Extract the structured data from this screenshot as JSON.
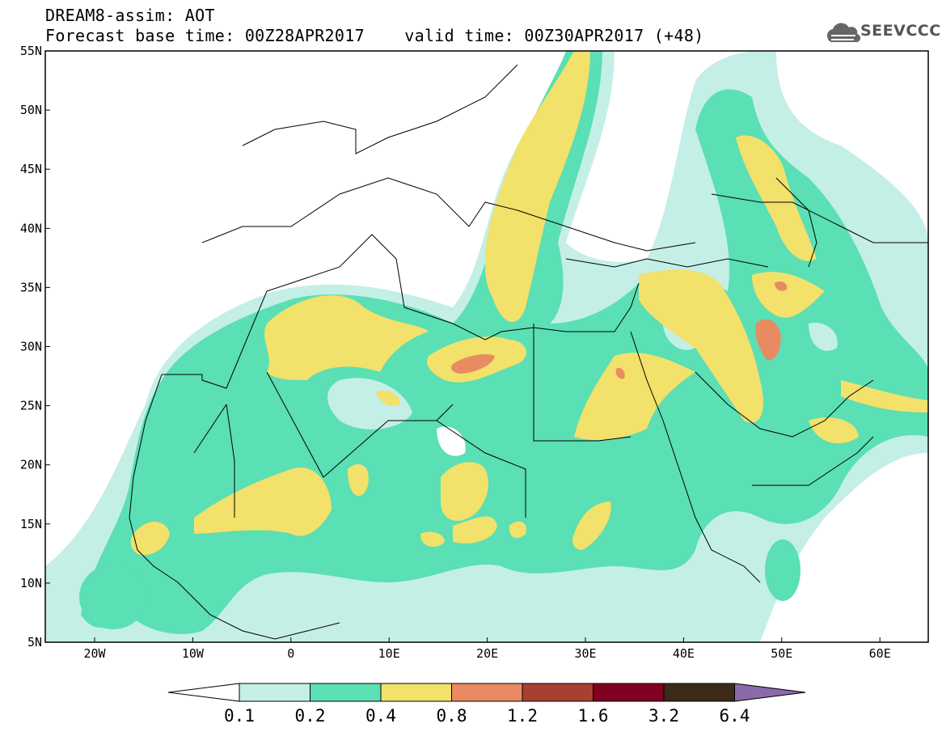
{
  "header": {
    "line1": "DREAM8-assim: AOT",
    "line2": "Forecast base time: 00Z28APR2017    valid time: 00Z30APR2017 (+48)",
    "logo_text": "SEEVCCC"
  },
  "axes": {
    "lat_labels": [
      "55N",
      "50N",
      "45N",
      "40N",
      "35N",
      "30N",
      "25N",
      "20N",
      "15N",
      "10N",
      "5N"
    ],
    "lon_labels": [
      "20W",
      "10W",
      "0",
      "10E",
      "20E",
      "30E",
      "40E",
      "50E",
      "60E"
    ]
  },
  "colorbar": {
    "labels": [
      "0.1",
      "0.2",
      "0.4",
      "0.8",
      "1.2",
      "1.6",
      "3.2",
      "6.4"
    ],
    "colors": [
      "#ffffff",
      "#c4efe6",
      "#5bdfb4",
      "#f2e16a",
      "#e88b62",
      "#a8402f",
      "#800020",
      "#3d2a18",
      "#8a6aa8"
    ]
  },
  "palette": {
    "aot_0_1": "#c4efe6",
    "aot_0_2": "#5bdfb4",
    "aot_0_4": "#f2e16a",
    "aot_0_8": "#e88b62",
    "aot_1_2": "#a8402f"
  }
}
